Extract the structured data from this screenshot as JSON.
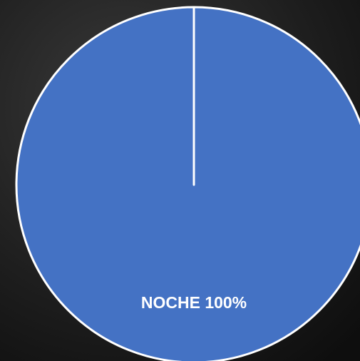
{
  "chart_data": {
    "type": "pie",
    "categories": [
      "NOCHE"
    ],
    "values": [
      100
    ],
    "value_labels": [
      "100%"
    ],
    "colors": [
      "#4472c4"
    ]
  }
}
